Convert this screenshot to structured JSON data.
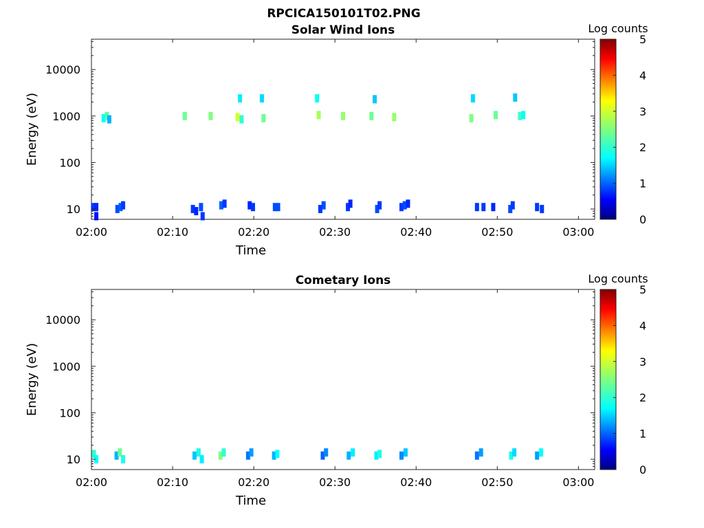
{
  "figure_title": "RPCICA150101T02.PNG",
  "chart_data": [
    {
      "type": "heatmap",
      "title": "Solar Wind Ions",
      "xlabel": "Time",
      "ylabel": "Energy (eV)",
      "x_tick_labels": [
        "02:00",
        "02:10",
        "02:20",
        "02:30",
        "02:40",
        "02:50",
        "03:00"
      ],
      "x_tick_minutes": [
        0,
        10,
        20,
        30,
        40,
        50,
        60
      ],
      "xlim_minutes": [
        0,
        62
      ],
      "y_scale": "log",
      "y_tick_labels": [
        "10",
        "100",
        "1000",
        "10000"
      ],
      "y_tick_values": [
        10,
        100,
        1000,
        10000
      ],
      "ylim": [
        6,
        45000
      ],
      "colorbar": {
        "label": "Log counts",
        "ticks": [
          "0",
          "1",
          "2",
          "3",
          "4",
          "5"
        ],
        "range": [
          0,
          5
        ],
        "colormap": "jet"
      },
      "data_minutes": [
        [
          0.2,
          11,
          0.9
        ],
        [
          0.6,
          11,
          0.8
        ],
        [
          0.6,
          7,
          0.7
        ],
        [
          3.2,
          10,
          1.0
        ],
        [
          3.6,
          11,
          1.1
        ],
        [
          3.9,
          12,
          0.9
        ],
        [
          12.5,
          10,
          0.9
        ],
        [
          12.9,
          9,
          0.8
        ],
        [
          13.5,
          11,
          1.0
        ],
        [
          13.7,
          7,
          0.9
        ],
        [
          16.0,
          12,
          1.1
        ],
        [
          16.4,
          13,
          0.9
        ],
        [
          19.5,
          12,
          0.8
        ],
        [
          19.9,
          11,
          0.9
        ],
        [
          22.6,
          11,
          1.0
        ],
        [
          23.0,
          11,
          1.0
        ],
        [
          28.2,
          10,
          0.9
        ],
        [
          28.6,
          12,
          1.0
        ],
        [
          31.6,
          11,
          0.9
        ],
        [
          31.9,
          13,
          0.8
        ],
        [
          35.2,
          10,
          1.0
        ],
        [
          35.5,
          12,
          0.9
        ],
        [
          38.2,
          11,
          0.9
        ],
        [
          38.6,
          12,
          1.0
        ],
        [
          39.0,
          13,
          0.8
        ],
        [
          47.5,
          11,
          0.9
        ],
        [
          48.3,
          11,
          0.9
        ],
        [
          49.5,
          11,
          0.8
        ],
        [
          51.6,
          10,
          1.0
        ],
        [
          51.9,
          12,
          0.9
        ],
        [
          54.9,
          11,
          0.9
        ],
        [
          55.5,
          10,
          0.9
        ],
        [
          1.5,
          900,
          1.9
        ],
        [
          1.9,
          1000,
          2.3
        ],
        [
          2.2,
          850,
          1.5
        ],
        [
          11.5,
          1000,
          2.4
        ],
        [
          14.7,
          1000,
          2.5
        ],
        [
          18.0,
          950,
          2.9
        ],
        [
          18.5,
          850,
          2.1
        ],
        [
          21.2,
          900,
          2.4
        ],
        [
          28.0,
          1050,
          2.7
        ],
        [
          31.0,
          1000,
          2.6
        ],
        [
          34.5,
          1000,
          2.4
        ],
        [
          37.3,
          950,
          2.6
        ],
        [
          46.8,
          900,
          2.5
        ],
        [
          49.8,
          1050,
          2.4
        ],
        [
          52.8,
          1000,
          2.2
        ],
        [
          53.2,
          1050,
          1.9
        ],
        [
          18.3,
          2400,
          1.8
        ],
        [
          21.0,
          2400,
          1.7
        ],
        [
          27.8,
          2400,
          1.9
        ],
        [
          34.9,
          2300,
          1.6
        ],
        [
          47.0,
          2400,
          1.7
        ],
        [
          52.2,
          2500,
          1.6
        ]
      ]
    },
    {
      "type": "heatmap",
      "title": "Cometary Ions",
      "xlabel": "Time",
      "ylabel": "Energy (eV)",
      "x_tick_labels": [
        "02:00",
        "02:10",
        "02:20",
        "02:30",
        "02:40",
        "02:50",
        "03:00"
      ],
      "x_tick_minutes": [
        0,
        10,
        20,
        30,
        40,
        50,
        60
      ],
      "xlim_minutes": [
        0,
        62
      ],
      "y_scale": "log",
      "y_tick_labels": [
        "10",
        "100",
        "1000",
        "10000"
      ],
      "y_tick_values": [
        10,
        100,
        1000,
        10000
      ],
      "ylim": [
        6,
        45000
      ],
      "colorbar": {
        "label": "Log counts",
        "ticks": [
          "0",
          "1",
          "2",
          "3",
          "4",
          "5"
        ],
        "range": [
          0,
          5
        ],
        "colormap": "jet"
      },
      "data_minutes": [
        [
          0.3,
          13,
          2.1
        ],
        [
          0.6,
          10,
          1.9
        ],
        [
          3.1,
          12,
          1.5
        ],
        [
          3.5,
          14,
          2.4
        ],
        [
          3.9,
          10,
          2.0
        ],
        [
          12.7,
          12,
          1.6
        ],
        [
          13.2,
          14,
          2.0
        ],
        [
          13.6,
          10,
          1.8
        ],
        [
          15.9,
          12,
          2.5
        ],
        [
          16.3,
          14,
          2.1
        ],
        [
          19.3,
          12,
          1.2
        ],
        [
          19.7,
          14,
          1.4
        ],
        [
          22.5,
          12,
          1.5
        ],
        [
          22.9,
          13,
          1.9
        ],
        [
          28.5,
          12,
          1.1
        ],
        [
          28.9,
          14,
          1.3
        ],
        [
          31.7,
          12,
          1.5
        ],
        [
          32.2,
          14,
          1.8
        ],
        [
          35.1,
          12,
          1.8
        ],
        [
          35.5,
          13,
          2.0
        ],
        [
          38.2,
          12,
          1.3
        ],
        [
          38.7,
          14,
          1.6
        ],
        [
          47.5,
          12,
          1.2
        ],
        [
          48.0,
          14,
          1.4
        ],
        [
          51.7,
          12,
          2.0
        ],
        [
          52.1,
          14,
          1.7
        ],
        [
          54.9,
          12,
          1.4
        ],
        [
          55.4,
          14,
          1.9
        ]
      ]
    }
  ]
}
